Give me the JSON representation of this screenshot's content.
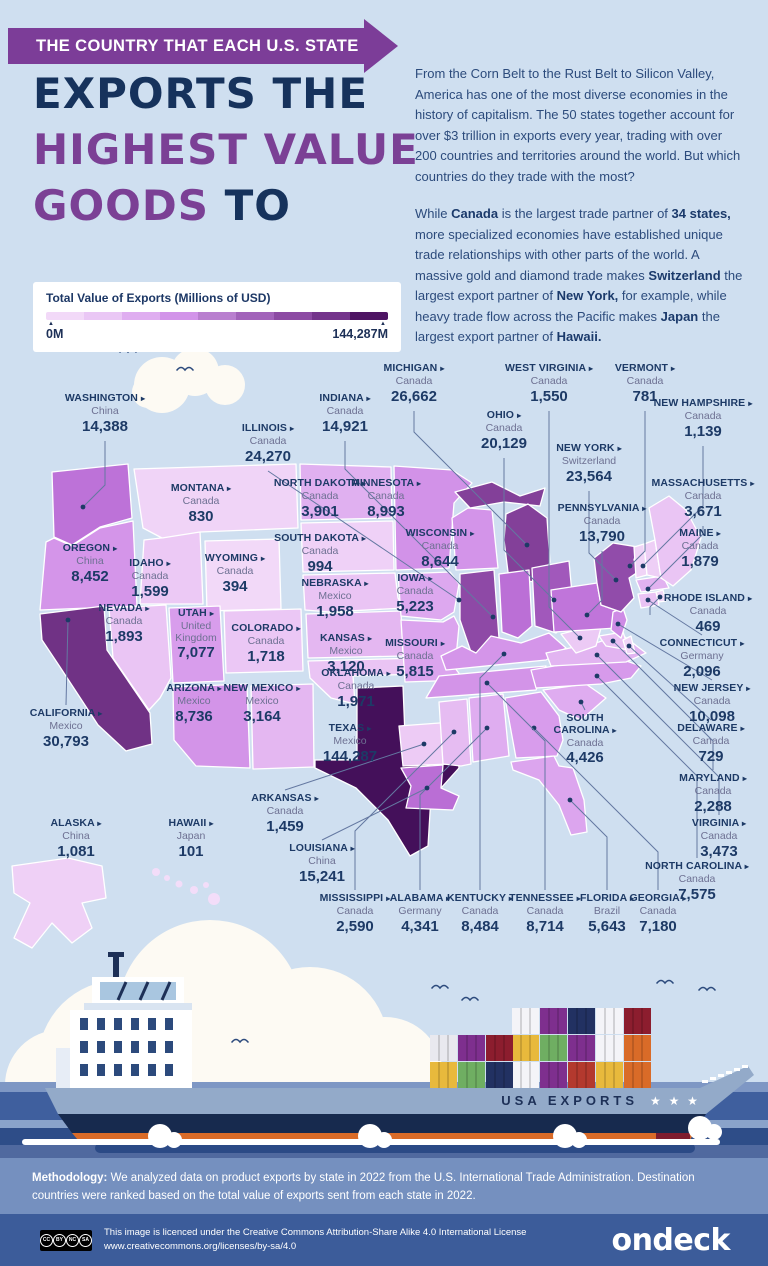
{
  "header": {
    "kicker": "THE COUNTRY THAT EACH U.S. STATE",
    "title_lines": [
      [
        {
          "t": "EXPORTS THE",
          "c": "navy"
        }
      ],
      [
        {
          "t": "HIGHEST VALUE",
          "c": "purple"
        }
      ],
      [
        {
          "t": "GOODS ",
          "c": "purple"
        },
        {
          "t": "TO",
          "c": "navy"
        }
      ]
    ]
  },
  "legend": {
    "title": "Total Value of Exports (Millions of USD)",
    "min_label": "0M",
    "max_label": "144,287M",
    "colors": [
      "#f2d9f8",
      "#eac7f5",
      "#dfadf0",
      "#d294e9",
      "#b97fcf",
      "#a263ba",
      "#8c4aa3",
      "#74348b",
      "#4e1463"
    ]
  },
  "intro": {
    "paragraphs": [
      [
        {
          "t": "From the Corn Belt to the Rust Belt to Silicon Valley, America has one of the most diverse economies in the history of capitalism. The 50 states together account for over $3 trillion in exports every year, trading with over 200 countries and territories around the world. But which countries do they trade with the most?"
        }
      ],
      [
        {
          "t": "While "
        },
        {
          "t": "Canada",
          "b": 1
        },
        {
          "t": " is the largest trade partner of "
        },
        {
          "t": "34 states,",
          "b": 1
        },
        {
          "t": " more specialized economies have established unique trade relationships with other parts of the world. A massive gold and diamond trade makes "
        },
        {
          "t": "Switzerland",
          "b": 1
        },
        {
          "t": " the largest export partner of "
        },
        {
          "t": "New York,",
          "b": 1
        },
        {
          "t": " for example, while heavy trade flow across the Pacific makes "
        },
        {
          "t": "Japan",
          "b": 1
        },
        {
          "t": " the largest export partner of "
        },
        {
          "t": "Hawaii.",
          "b": 1
        }
      ]
    ]
  },
  "chart_data": {
    "type": "heatmap",
    "subtype": "us-choropleth-map",
    "title": "The Country That Each U.S. State Exports the Highest Value Goods To",
    "legend_title": "Total Value of Exports (Millions of USD)",
    "value_range": [
      0,
      144287
    ],
    "states": [
      {
        "id": "WA",
        "name": "WASHINGTON",
        "country": "China",
        "value": 14388
      },
      {
        "id": "OR",
        "name": "OREGON",
        "country": "China",
        "value": 8452
      },
      {
        "id": "CA",
        "name": "CALIFORNIA",
        "country": "Mexico",
        "value": 30793
      },
      {
        "id": "ID",
        "name": "IDAHO",
        "country": "Canada",
        "value": 1599
      },
      {
        "id": "NV",
        "name": "NEVADA",
        "country": "Canada",
        "value": 1893
      },
      {
        "id": "MT",
        "name": "MONTANA",
        "country": "Canada",
        "value": 830
      },
      {
        "id": "WY",
        "name": "WYOMING",
        "country": "Canada",
        "value": 394
      },
      {
        "id": "UT",
        "name": "UTAH",
        "country": "United Kingdom",
        "value": 7077
      },
      {
        "id": "AZ",
        "name": "ARIZONA",
        "country": "Mexico",
        "value": 8736
      },
      {
        "id": "CO",
        "name": "COLORADO",
        "country": "Canada",
        "value": 1718
      },
      {
        "id": "NM",
        "name": "NEW MEXICO",
        "country": "Mexico",
        "value": 3164
      },
      {
        "id": "ND",
        "name": "NORTH DAKOTA",
        "country": "Canada",
        "value": 3901
      },
      {
        "id": "SD",
        "name": "SOUTH DAKOTA",
        "country": "Canada",
        "value": 994
      },
      {
        "id": "NE",
        "name": "NEBRASKA",
        "country": "Mexico",
        "value": 1958
      },
      {
        "id": "KS",
        "name": "KANSAS",
        "country": "Mexico",
        "value": 3120
      },
      {
        "id": "OK",
        "name": "OKLAHOMA",
        "country": "Canada",
        "value": 1971
      },
      {
        "id": "TX",
        "name": "TEXAS",
        "country": "Mexico",
        "value": 144287
      },
      {
        "id": "MN",
        "name": "MINNESOTA",
        "country": "Canada",
        "value": 8993
      },
      {
        "id": "IA",
        "name": "IOWA",
        "country": "Canada",
        "value": 5223
      },
      {
        "id": "MO",
        "name": "MISSOURI",
        "country": "Canada",
        "value": 5815
      },
      {
        "id": "AR",
        "name": "ARKANSAS",
        "country": "Canada",
        "value": 1459
      },
      {
        "id": "LA",
        "name": "LOUISIANA",
        "country": "China",
        "value": 15241
      },
      {
        "id": "WI",
        "name": "WISCONSIN",
        "country": "Canada",
        "value": 8644
      },
      {
        "id": "IL",
        "name": "ILLINOIS",
        "country": "Canada",
        "value": 24270
      },
      {
        "id": "MI",
        "name": "MICHIGAN",
        "country": "Canada",
        "value": 26662
      },
      {
        "id": "IN",
        "name": "INDIANA",
        "country": "Canada",
        "value": 14921
      },
      {
        "id": "OH",
        "name": "OHIO",
        "country": "Canada",
        "value": 20129
      },
      {
        "id": "KY",
        "name": "KENTUCKY",
        "country": "Canada",
        "value": 8484
      },
      {
        "id": "TN",
        "name": "TENNESSEE",
        "country": "Canada",
        "value": 8714
      },
      {
        "id": "MS",
        "name": "MISSISSIPPI",
        "country": "Canada",
        "value": 2590
      },
      {
        "id": "AL",
        "name": "ALABAMA",
        "country": "Germany",
        "value": 4341
      },
      {
        "id": "GA",
        "name": "GEORGIA",
        "country": "Canada",
        "value": 7180
      },
      {
        "id": "FL",
        "name": "FLORIDA",
        "country": "Brazil",
        "value": 5643
      },
      {
        "id": "SC",
        "name": "SOUTH CAROLINA",
        "country": "Canada",
        "value": 4426
      },
      {
        "id": "NC",
        "name": "NORTH CAROLINA",
        "country": "Canada",
        "value": 7575
      },
      {
        "id": "VA",
        "name": "VIRGINIA",
        "country": "Canada",
        "value": 3473
      },
      {
        "id": "WV",
        "name": "WEST VIRGINIA",
        "country": "Canada",
        "value": 1550
      },
      {
        "id": "MD",
        "name": "MARYLAND",
        "country": "Canada",
        "value": 2288
      },
      {
        "id": "DE",
        "name": "DELAWARE",
        "country": "Canada",
        "value": 729
      },
      {
        "id": "PA",
        "name": "PENNSYLVANIA",
        "country": "Canada",
        "value": 13790
      },
      {
        "id": "NJ",
        "name": "NEW JERSEY",
        "country": "Canada",
        "value": 10098
      },
      {
        "id": "NY",
        "name": "NEW YORK",
        "country": "Switzerland",
        "value": 23564
      },
      {
        "id": "CT",
        "name": "CONNECTICUT",
        "country": "Germany",
        "value": 2096
      },
      {
        "id": "RI",
        "name": "RHODE ISLAND",
        "country": "Canada",
        "value": 469
      },
      {
        "id": "MA",
        "name": "MASSACHUSETTS",
        "country": "Canada",
        "value": 3671
      },
      {
        "id": "VT",
        "name": "VERMONT",
        "country": "Canada",
        "value": 781
      },
      {
        "id": "NH",
        "name": "NEW HAMPSHIRE",
        "country": "Canada",
        "value": 1139
      },
      {
        "id": "ME",
        "name": "MAINE",
        "country": "Canada",
        "value": 1879
      },
      {
        "id": "AK",
        "name": "ALASKA",
        "country": "China",
        "value": 1081
      },
      {
        "id": "HI",
        "name": "HAWAII",
        "country": "Japan",
        "value": 101
      }
    ]
  },
  "ship": {
    "label": "USA EXPORTS",
    "stars": "★ ★ ★"
  },
  "methodology": {
    "lead": "Methodology:",
    "text": " We analyzed data on product exports by state in 2022 from the U.S. International Trade Administration. Destination countries were ranked based on the total value of exports sent from each state in 2022."
  },
  "footer": {
    "cc_parts": [
      "CC",
      "BY",
      "NC",
      "SA"
    ],
    "license_line1": "This image is licenced under the Creative Commons Attribution-Share Alike 4.0 International License",
    "license_line2": "www.creativecommons.org/licenses/by-sa/4.0",
    "brand": "ondeck"
  }
}
